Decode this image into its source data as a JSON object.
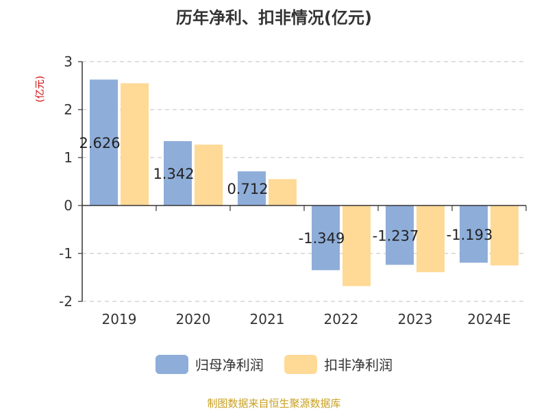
{
  "colors": {
    "net_profit": "#8eadd9",
    "deducted": "#ffd996",
    "unit": "#d40000",
    "source": "#c8a020"
  },
  "chart_data": {
    "type": "bar",
    "title": "历年净利、扣非情况(亿元)",
    "unit": "(亿元)",
    "categories": [
      "2019",
      "2020",
      "2021",
      "2022",
      "2023",
      "2024E"
    ],
    "series": [
      {
        "name": "归母净利润",
        "values": [
          2.626,
          1.342,
          0.712,
          -1.349,
          -1.237,
          -1.193
        ],
        "labels": [
          "2.626",
          "1.342",
          "0.712",
          "-1.349",
          "-1.237",
          "-1.193"
        ]
      },
      {
        "name": "扣非净利润",
        "values": [
          2.55,
          1.27,
          0.55,
          -1.68,
          -1.39,
          -1.25
        ]
      }
    ],
    "ylim": [
      -2,
      3
    ],
    "yticks": [
      "3",
      "2",
      "1",
      "0",
      "-1",
      "-2"
    ],
    "grid": true,
    "legend": "bottom"
  },
  "source": "制图数据来自恒生聚源数据库"
}
